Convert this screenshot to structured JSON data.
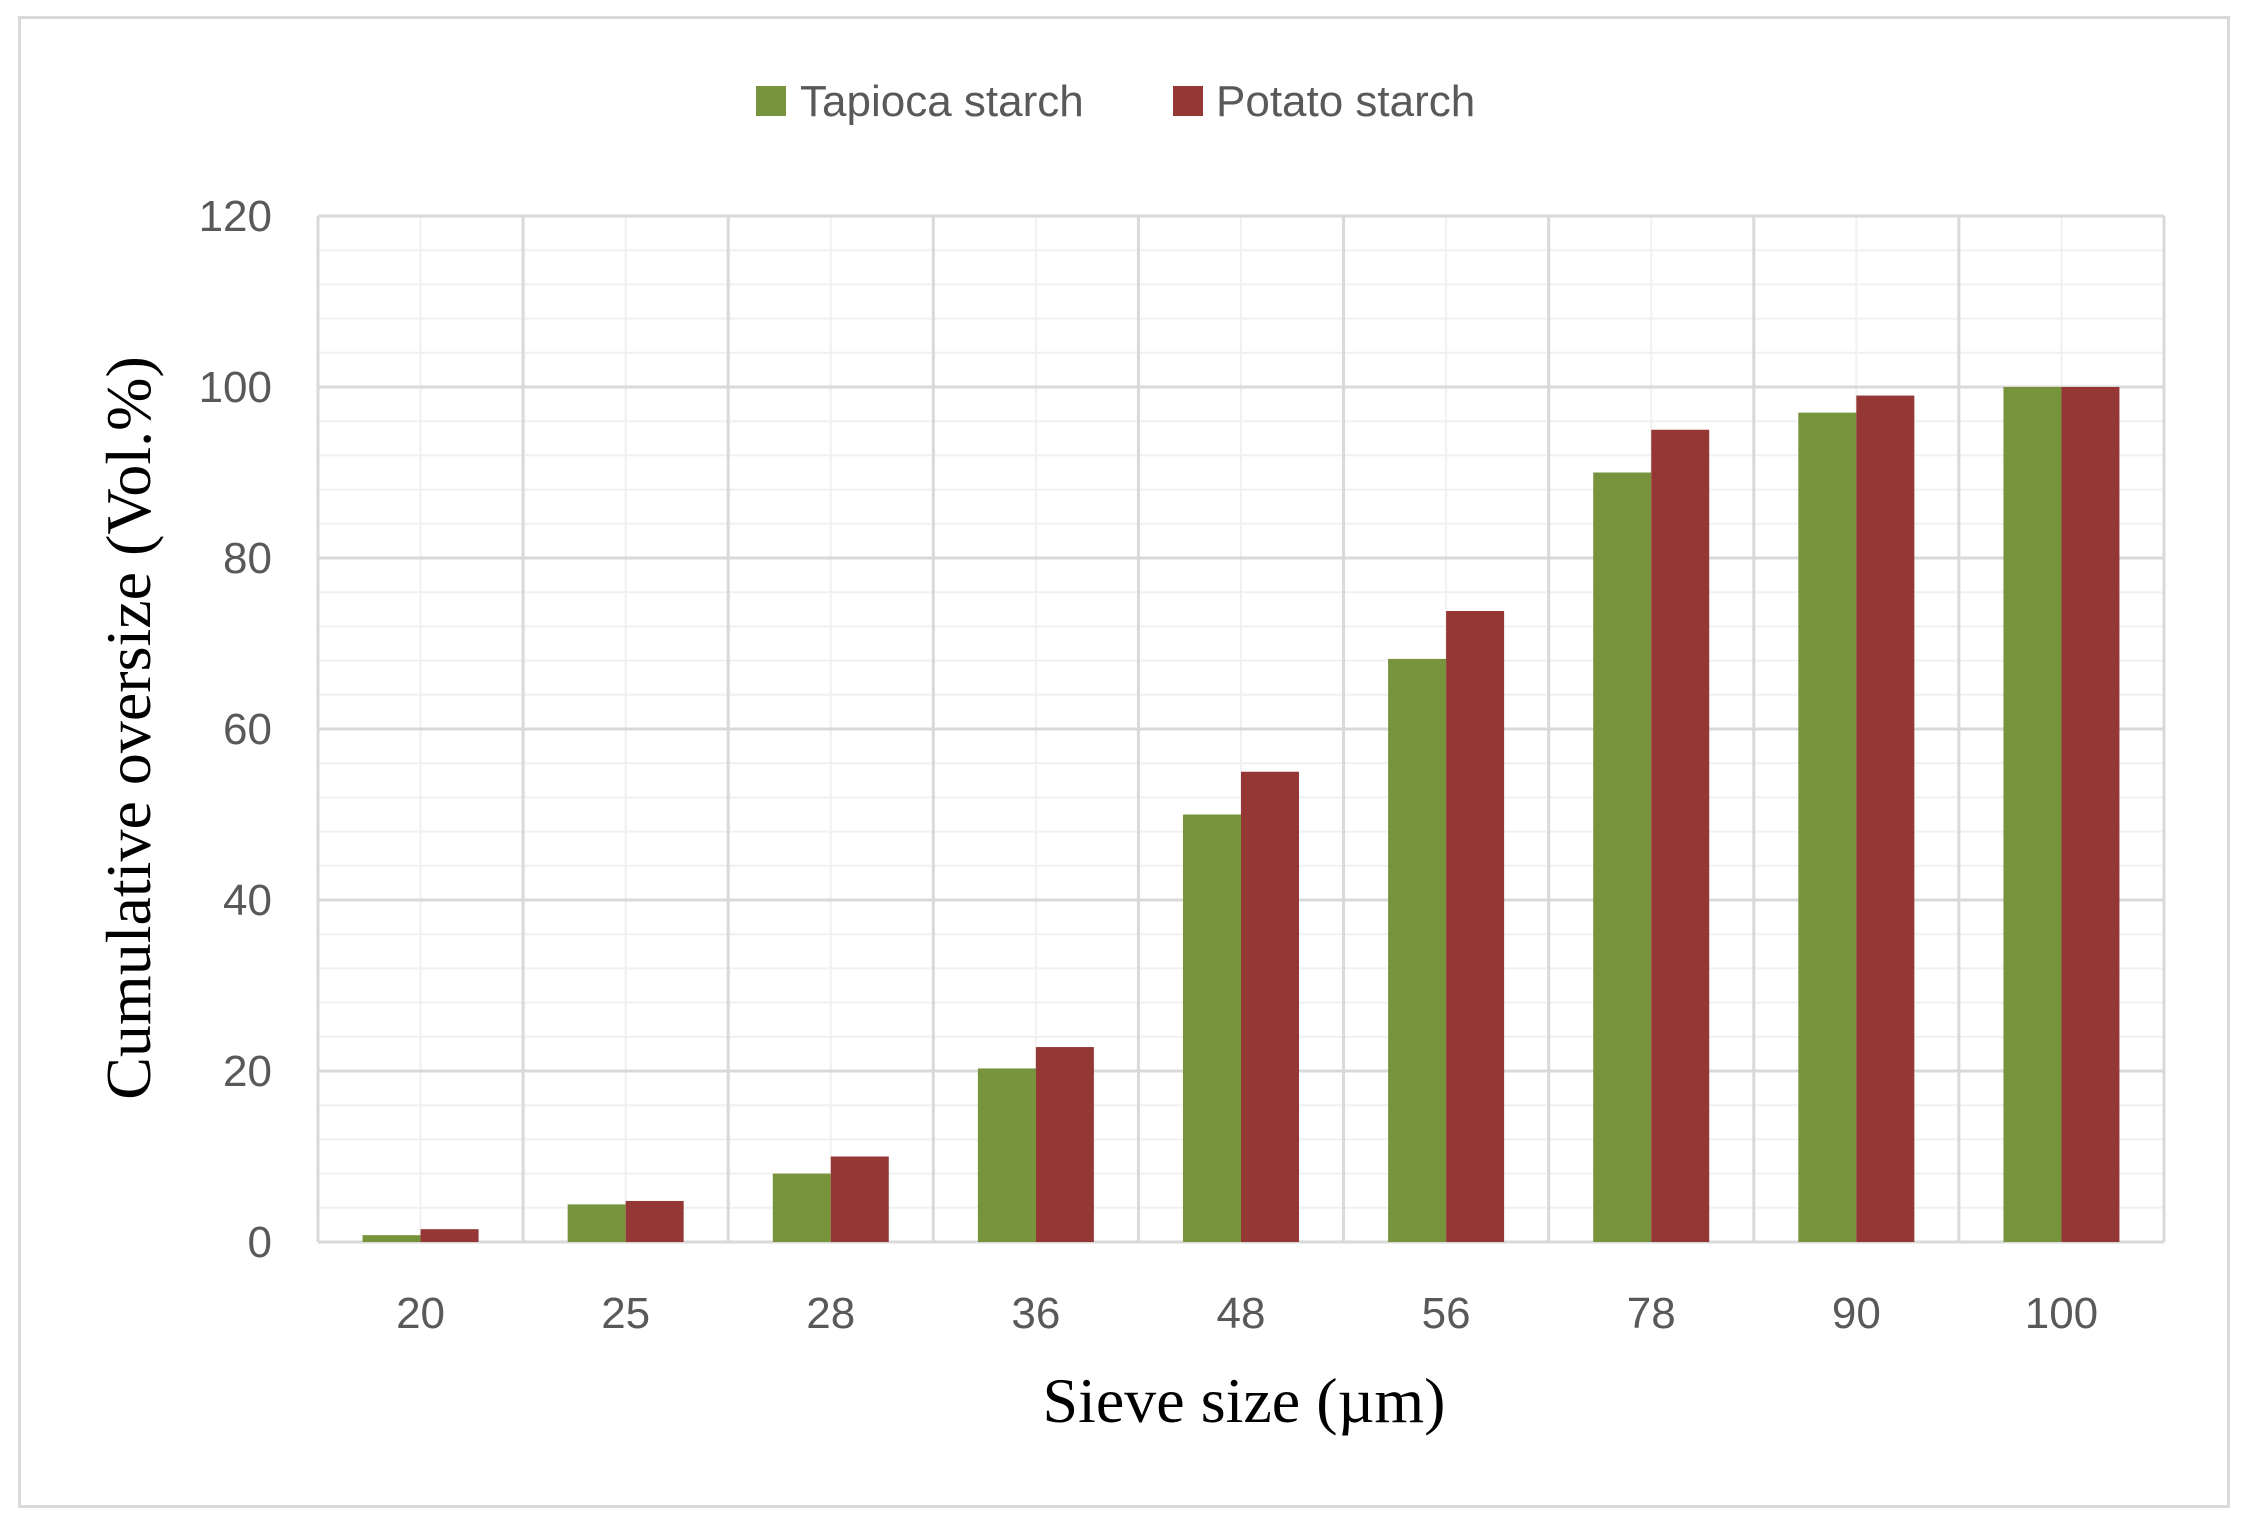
{
  "chart_data": {
    "type": "bar",
    "categories": [
      "20",
      "25",
      "28",
      "36",
      "48",
      "56",
      "78",
      "90",
      "100"
    ],
    "series": [
      {
        "name": "Tapioca starch",
        "color": "#77933C",
        "values": [
          0.8,
          4.4,
          8.0,
          20.3,
          50.0,
          68.2,
          90.0,
          97.0,
          100.0
        ]
      },
      {
        "name": "Potato starch",
        "color": "#953735",
        "values": [
          1.5,
          4.8,
          10.0,
          22.8,
          55.0,
          73.8,
          95.0,
          99.0,
          100.0
        ]
      }
    ],
    "xlabel": "Sieve size (µm)",
    "ylabel": "Cumulative oversize (Vol.%)",
    "ylim": [
      0,
      120
    ],
    "yticks": [
      "0",
      "20",
      "40",
      "60",
      "80",
      "100",
      "120"
    ],
    "grid": true,
    "legend_position": "top-center"
  }
}
